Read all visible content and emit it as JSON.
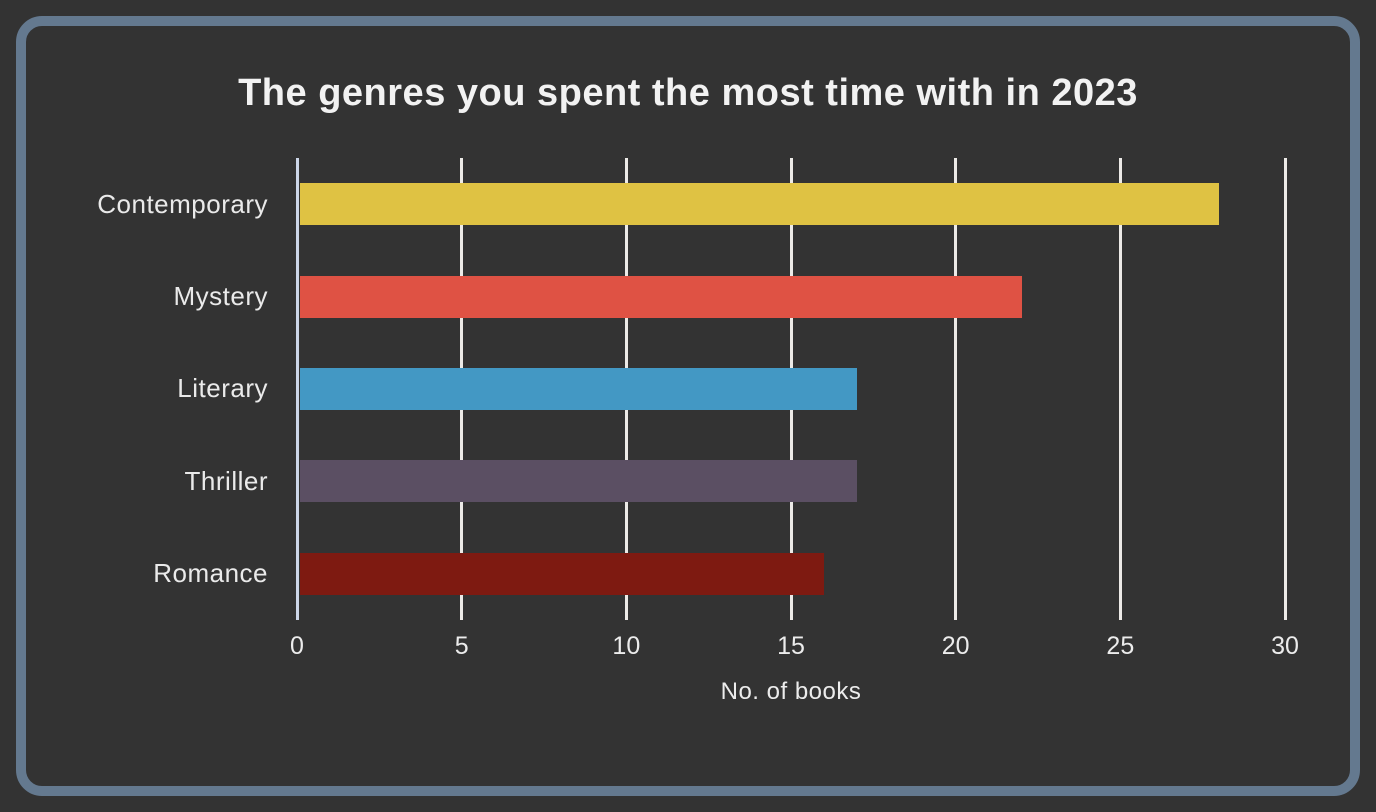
{
  "window": {
    "background_color": "#333333",
    "frame_border_color": "#64798f"
  },
  "chart_data": {
    "type": "bar",
    "orientation": "horizontal",
    "title": "The genres you spent the most time with in 2023",
    "categories": [
      "Contemporary",
      "Mystery",
      "Literary",
      "Thriller",
      "Romance"
    ],
    "values": [
      28,
      22,
      17,
      17,
      16
    ],
    "bar_colors": [
      "#dfc243",
      "#df5244",
      "#4398c4",
      "#5b4f63",
      "#7e1a11"
    ],
    "xlabel": "No. of books",
    "ylabel": "",
    "xlim": [
      0,
      30
    ],
    "xticks": [
      0,
      5,
      10,
      15,
      20,
      25,
      30
    ],
    "grid": true,
    "legend": false,
    "gridline_color": "#eceae7",
    "axis_line_color": "#ccd6e8",
    "text_color": "#ececec"
  }
}
